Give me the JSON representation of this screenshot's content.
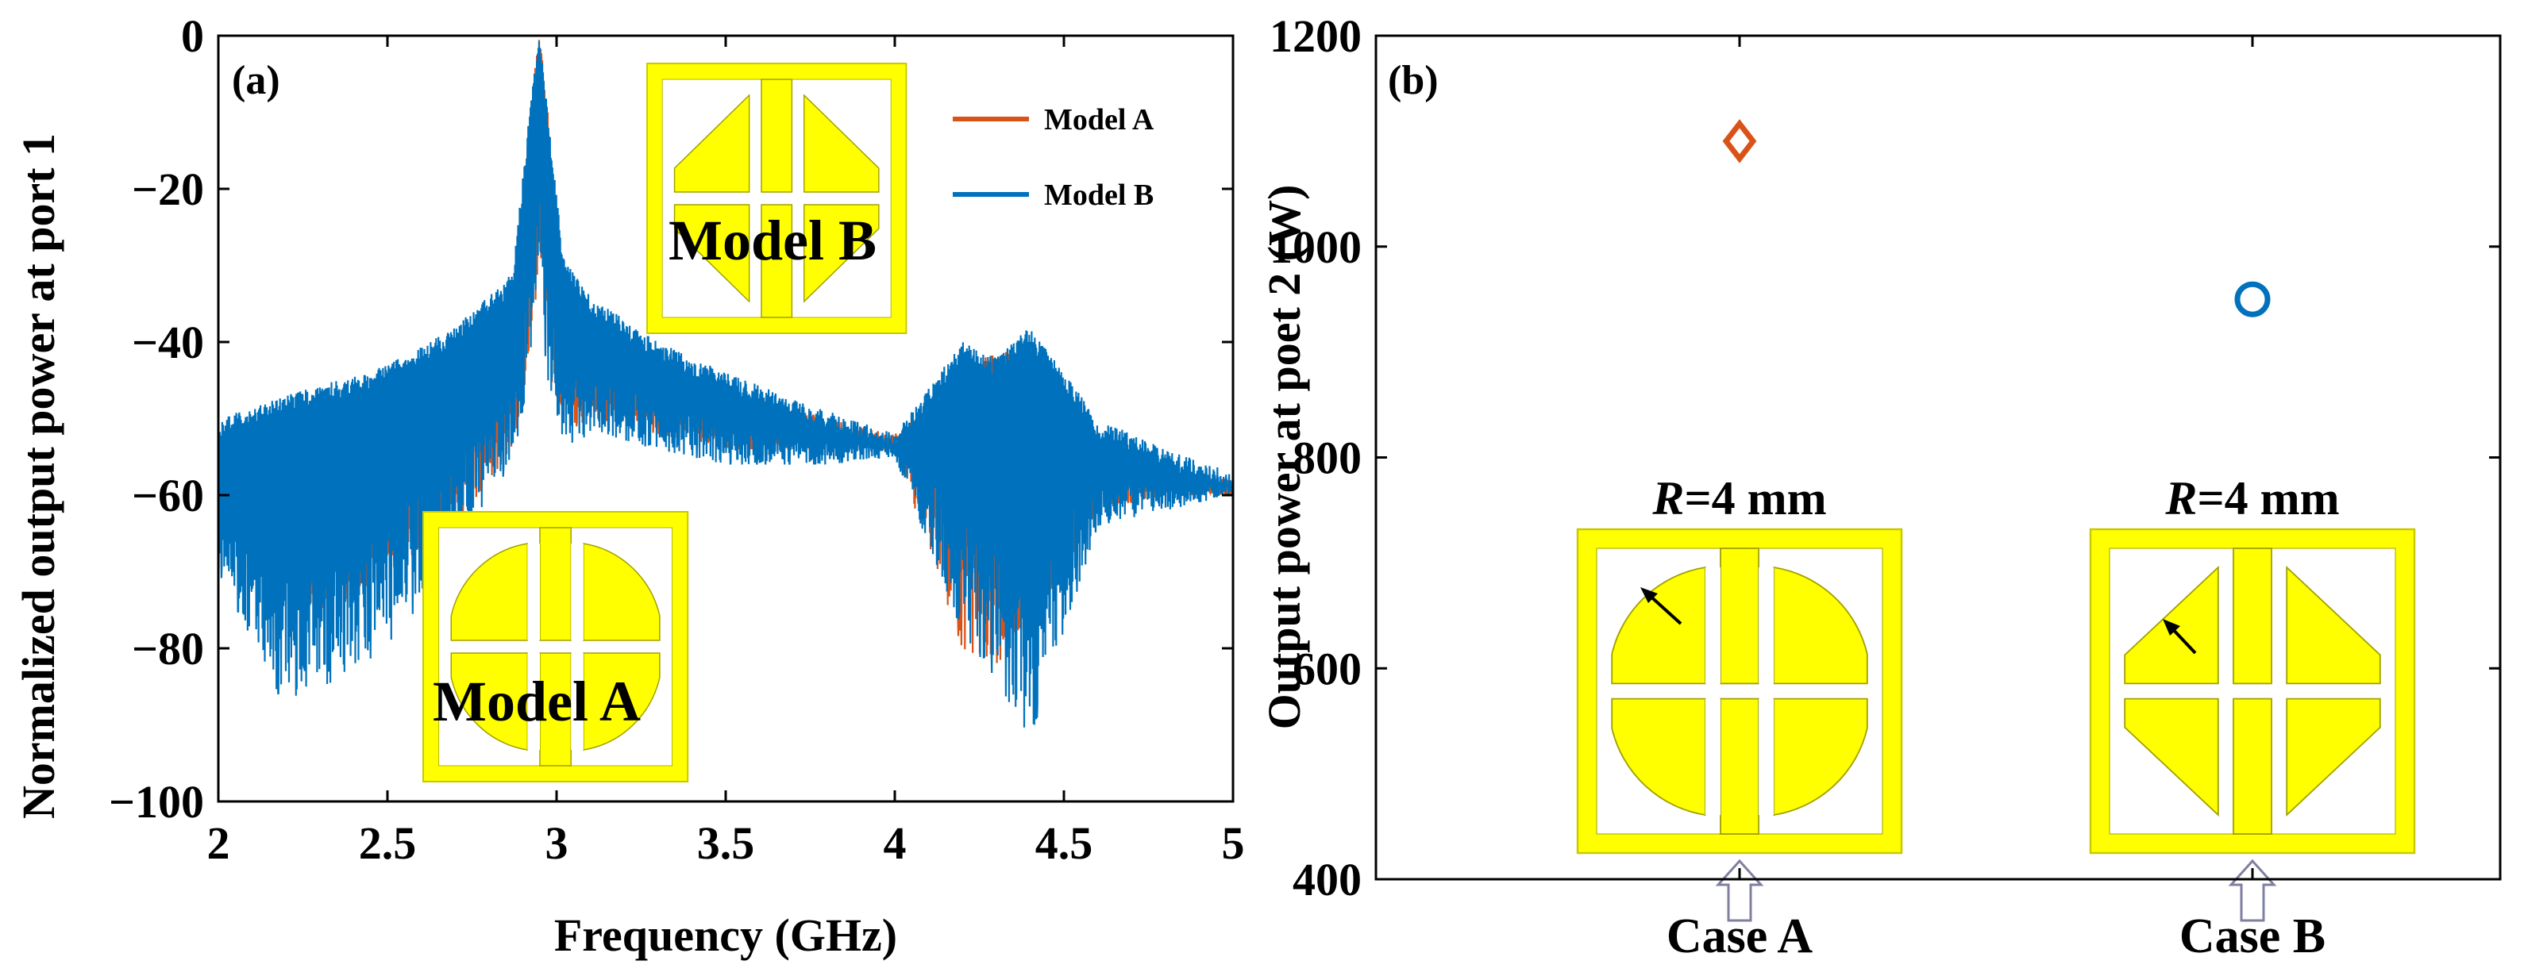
{
  "chart_data": [
    {
      "panel_label": "(a)",
      "type": "line",
      "xlabel": "Frequency (GHz)",
      "ylabel": "Normalized output power at port 1",
      "xlim": [
        2,
        5
      ],
      "ylim": [
        -100,
        0
      ],
      "xticks": [
        2,
        2.5,
        3,
        3.5,
        4,
        4.5,
        5
      ],
      "xtick_labels": [
        "2",
        "2.5",
        "3",
        "3.5",
        "4",
        "4.5",
        "5"
      ],
      "yticks": [
        -100,
        -80,
        -60,
        -40,
        -20,
        0
      ],
      "ytick_labels": [
        "−100",
        "−80",
        "−60",
        "−40",
        "−20",
        "0"
      ],
      "legend_position": "top-right",
      "series": [
        {
          "name": "Model A",
          "color": "#D95319",
          "envelope": {
            "x": [
              2.0,
              2.3,
              2.5,
              2.7,
              2.8,
              2.87,
              2.93,
              2.95,
              2.97,
              3.02,
              3.1,
              3.3,
              3.5,
              3.8,
              4.0,
              4.2,
              4.3,
              4.4,
              4.6,
              4.8,
              5.0
            ],
            "upper": [
              -52,
              -50,
              -48,
              -44,
              -40,
              -36,
              -6,
              0,
              -8,
              -34,
              -38,
              -42,
              -46,
              -50,
              -52,
              -44,
              -41,
              -42,
              -52,
              -56,
              -58
            ],
            "lower": [
              -66,
              -76,
              -70,
              -64,
              -58,
              -54,
              -40,
              -30,
              -42,
              -52,
              -50,
              -52,
              -54,
              -54,
              -54,
              -80,
              -82,
              -78,
              -62,
              -60,
              -60
            ]
          }
        },
        {
          "name": "Model B",
          "color": "#0072BD",
          "envelope": {
            "x": [
              2.0,
              2.2,
              2.5,
              2.7,
              2.8,
              2.87,
              2.93,
              2.95,
              2.97,
              3.02,
              3.1,
              3.3,
              3.5,
              3.8,
              4.0,
              4.2,
              4.3,
              4.4,
              4.6,
              4.8,
              5.0
            ],
            "upper": [
              -50,
              -47,
              -43,
              -38,
              -34,
              -31,
              -6,
              0,
              -8,
              -29,
              -34,
              -40,
              -44,
              -49,
              -52,
              -40,
              -42,
              -38,
              -50,
              -54,
              -57
            ],
            "lower": [
              -70,
              -88,
              -80,
              -68,
              -60,
              -56,
              -42,
              -30,
              -44,
              -54,
              -52,
              -54,
              -56,
              -56,
              -55,
              -78,
              -84,
              -92,
              -64,
              -62,
              -60
            ]
          }
        }
      ],
      "insets": [
        {
          "label": "Model B",
          "shape": "corner-cut"
        },
        {
          "label": "Model A",
          "shape": "rounded"
        }
      ]
    },
    {
      "panel_label": "(b)",
      "type": "scatter",
      "xlabel": "",
      "ylabel": "Output power at poet 2 (W)",
      "ylim": [
        400,
        1200
      ],
      "yticks": [
        400,
        600,
        800,
        1000,
        1200
      ],
      "ytick_labels": [
        "400",
        "600",
        "800",
        "1000",
        "1200"
      ],
      "categories": [
        "Case A",
        "Case B"
      ],
      "series": [
        {
          "name": "Case A",
          "marker": "diamond",
          "color": "#D95319",
          "value": 1100
        },
        {
          "name": "Case B",
          "marker": "circle",
          "color": "#0072BD",
          "value": 950
        }
      ],
      "insets": [
        {
          "r_italic": "R",
          "r_text": "=4 mm",
          "shape": "rounded"
        },
        {
          "r_italic": "R",
          "r_text": "=4 mm",
          "shape": "corner-cut"
        }
      ]
    }
  ]
}
